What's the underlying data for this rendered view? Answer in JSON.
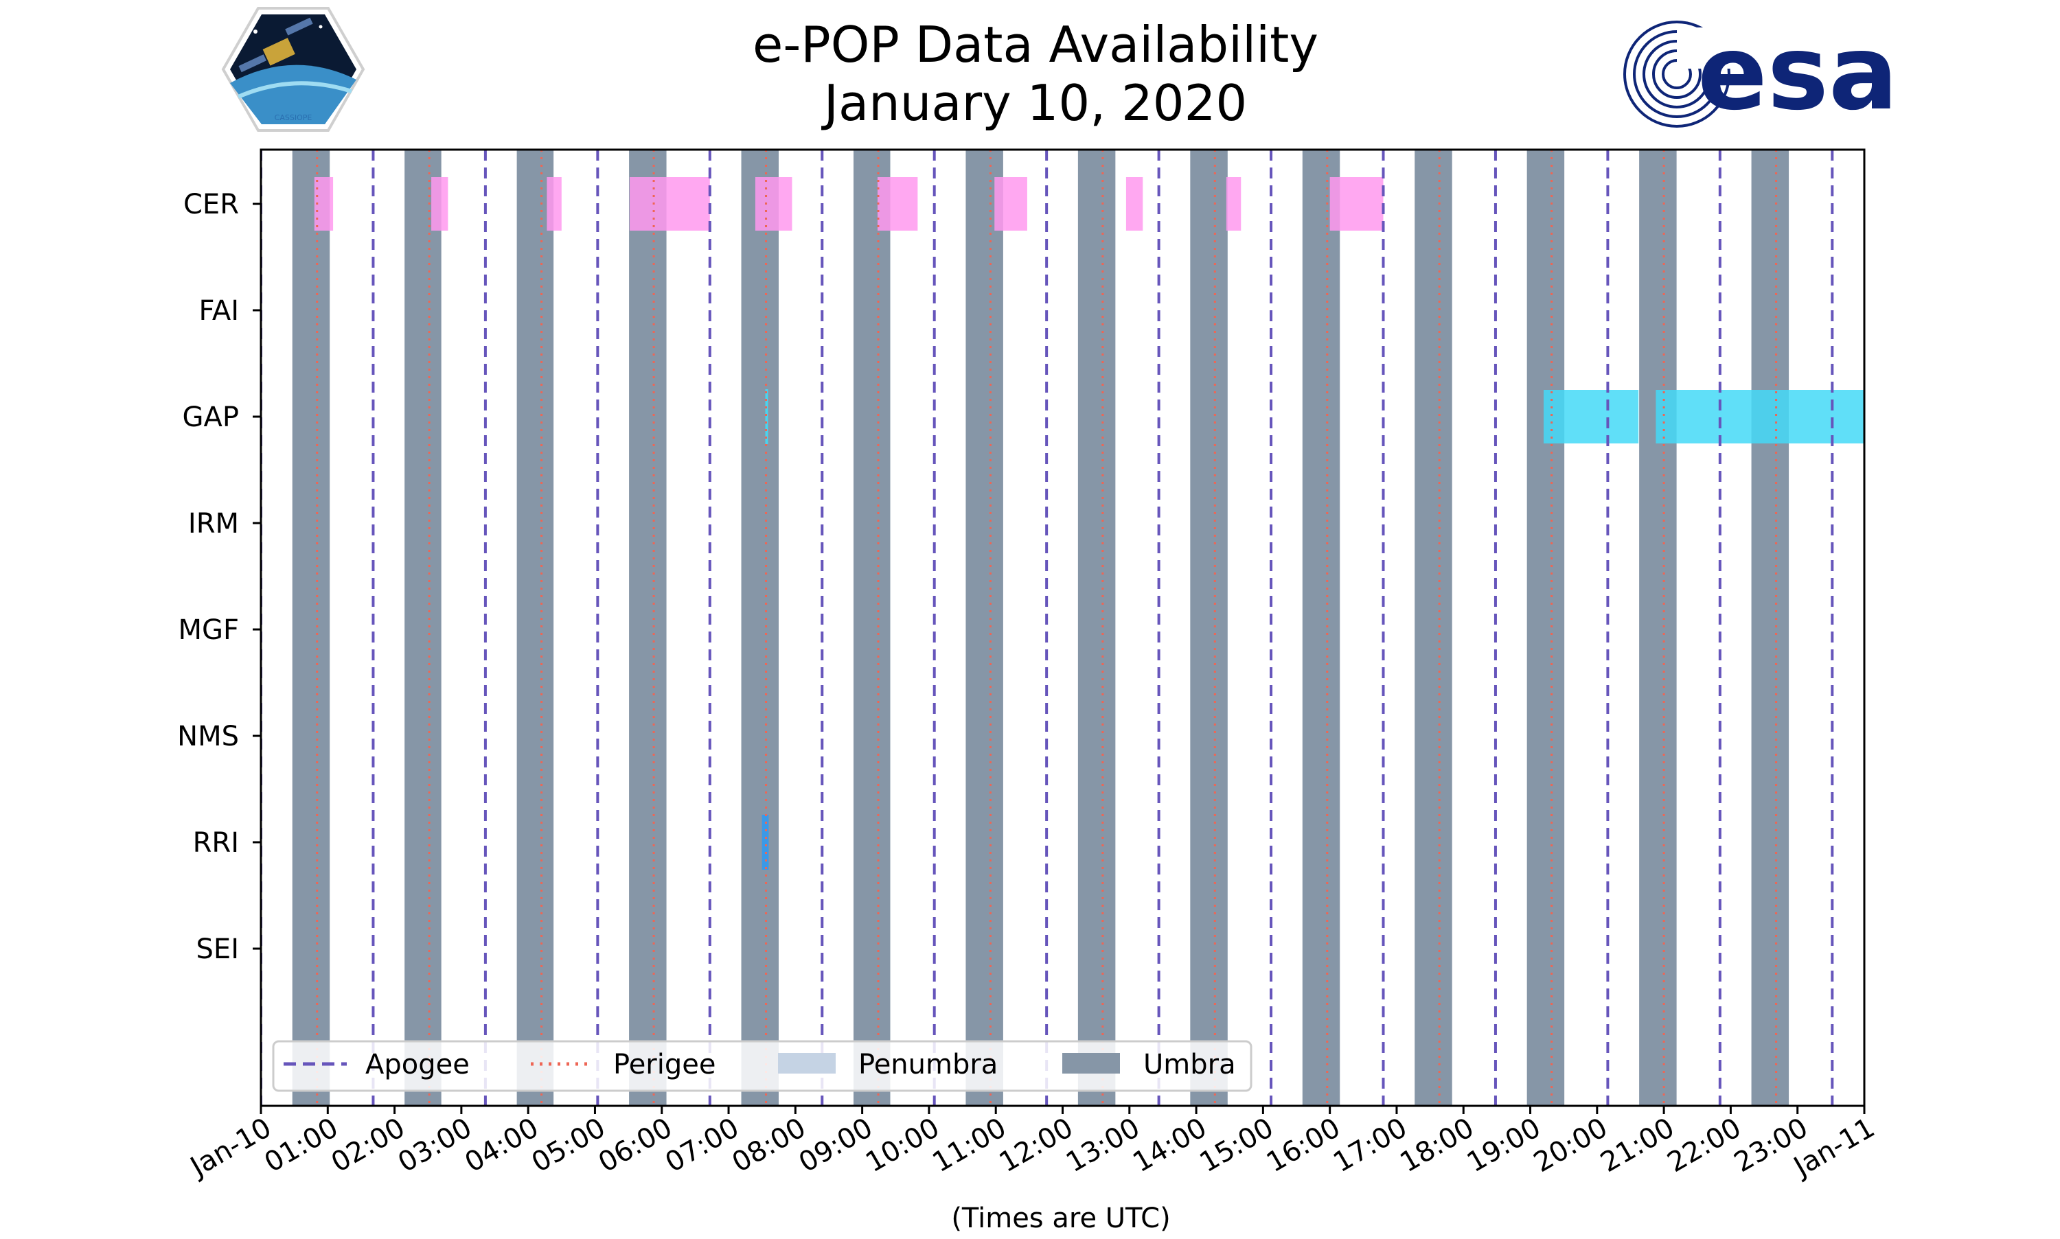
{
  "chart_data": {
    "type": "timeline",
    "title": "e-POP Data Availability",
    "subtitle": "January 10, 2020",
    "xlabel": "(Times are UTC)",
    "x_range_hours": [
      0,
      24
    ],
    "x_tick_labels": [
      "Jan-10",
      "01:00",
      "02:00",
      "03:00",
      "04:00",
      "05:00",
      "06:00",
      "07:00",
      "08:00",
      "09:00",
      "10:00",
      "11:00",
      "12:00",
      "13:00",
      "14:00",
      "15:00",
      "16:00",
      "17:00",
      "18:00",
      "19:00",
      "20:00",
      "21:00",
      "22:00",
      "23:00",
      "Jan-11"
    ],
    "instruments": [
      "CER",
      "FAI",
      "GAP",
      "IRM",
      "MGF",
      "NMS",
      "RRI",
      "SEI"
    ],
    "umbra_intervals": [
      [
        0.47,
        1.03
      ],
      [
        2.15,
        2.7
      ],
      [
        3.83,
        4.38
      ],
      [
        5.51,
        6.07
      ],
      [
        7.19,
        7.75
      ],
      [
        8.87,
        9.42
      ],
      [
        10.55,
        11.11
      ],
      [
        12.23,
        12.79
      ],
      [
        13.91,
        14.47
      ],
      [
        15.59,
        16.15
      ],
      [
        17.27,
        17.83
      ],
      [
        18.95,
        19.51
      ],
      [
        20.63,
        21.19
      ],
      [
        22.31,
        22.87
      ]
    ],
    "apogee_hours": [
      0.0,
      1.68,
      3.36,
      5.04,
      6.72,
      8.4,
      10.08,
      11.76,
      13.44,
      15.12,
      16.8,
      18.48,
      20.16,
      21.84,
      23.52
    ],
    "perigee_hours": [
      0.84,
      2.52,
      4.2,
      5.88,
      7.56,
      9.24,
      10.92,
      12.6,
      14.28,
      15.96,
      17.64,
      19.32,
      21.0,
      22.68
    ],
    "availability": [
      {
        "instrument": "CER",
        "color": "#ff99ee",
        "intervals": [
          [
            0.8,
            1.08
          ],
          [
            2.55,
            2.8
          ],
          [
            4.28,
            4.5
          ],
          [
            5.52,
            6.72
          ],
          [
            7.4,
            7.95
          ],
          [
            9.23,
            9.83
          ],
          [
            10.98,
            11.47
          ],
          [
            12.95,
            13.2
          ],
          [
            14.45,
            14.67
          ],
          [
            16.0,
            16.8
          ]
        ]
      },
      {
        "instrument": "GAP",
        "color": "#44d9f7",
        "intervals": [
          [
            7.55,
            7.59
          ],
          [
            19.2,
            20.62
          ],
          [
            20.88,
            24.0
          ]
        ]
      },
      {
        "instrument": "RRI",
        "color": "#3399ee",
        "intervals": [
          [
            7.5,
            7.6
          ]
        ]
      }
    ],
    "legend": {
      "placement": "lower-left",
      "apogee": "Apogee",
      "perigee": "Perigee",
      "penumbra": "Penumbra",
      "umbra": "Umbra"
    },
    "colors": {
      "umbra": "#8696a7",
      "penumbra": "#c5d3e4",
      "apogee": "#6655bb",
      "perigee": "#ee6655"
    }
  },
  "logos": {
    "mission": "CASSIOPE",
    "agency": "esa"
  }
}
